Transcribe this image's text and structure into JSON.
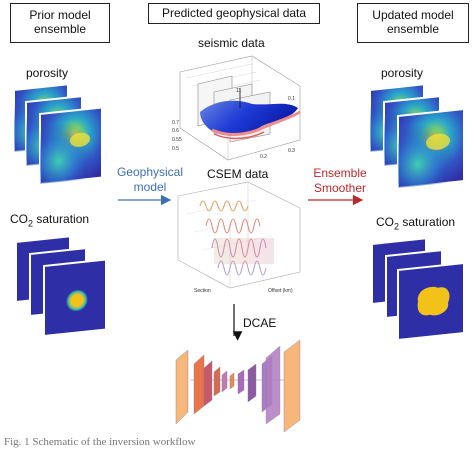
{
  "headers": {
    "prior": "Prior model\nensemble",
    "predicted": "Predicted geophysical data",
    "updated": "Updated model\nensemble"
  },
  "left": {
    "porosity": "porosity",
    "co2_prefix": "CO",
    "co2_sub": "2",
    "co2_suffix": " saturation"
  },
  "middle": {
    "seismic": "seismic data",
    "csem": "CSEM data",
    "dcae": "DCAE",
    "seismic_ticks": [
      "0.7",
      "0.6",
      "0.55",
      "0.5",
      "0.1",
      "0.3",
      "0.2",
      "11"
    ],
    "csem_ticks": [
      "Section",
      "Offset (km)"
    ]
  },
  "right": {
    "porosity": "porosity",
    "co2_prefix": "CO",
    "co2_sub": "2",
    "co2_suffix": " saturation"
  },
  "arrows": {
    "geophysical_line1": "Geophysical",
    "geophysical_line2": "model",
    "ensemble_line1": "Ensemble",
    "ensemble_line2": "Smoother"
  },
  "colors": {
    "geophysical": "#3d6fb8",
    "ensemble": "#c0282b",
    "map_background": "#2e2fa6",
    "plume": "#f2c21b"
  },
  "caption": "Fig. 1   Schematic of the inversion workflow"
}
